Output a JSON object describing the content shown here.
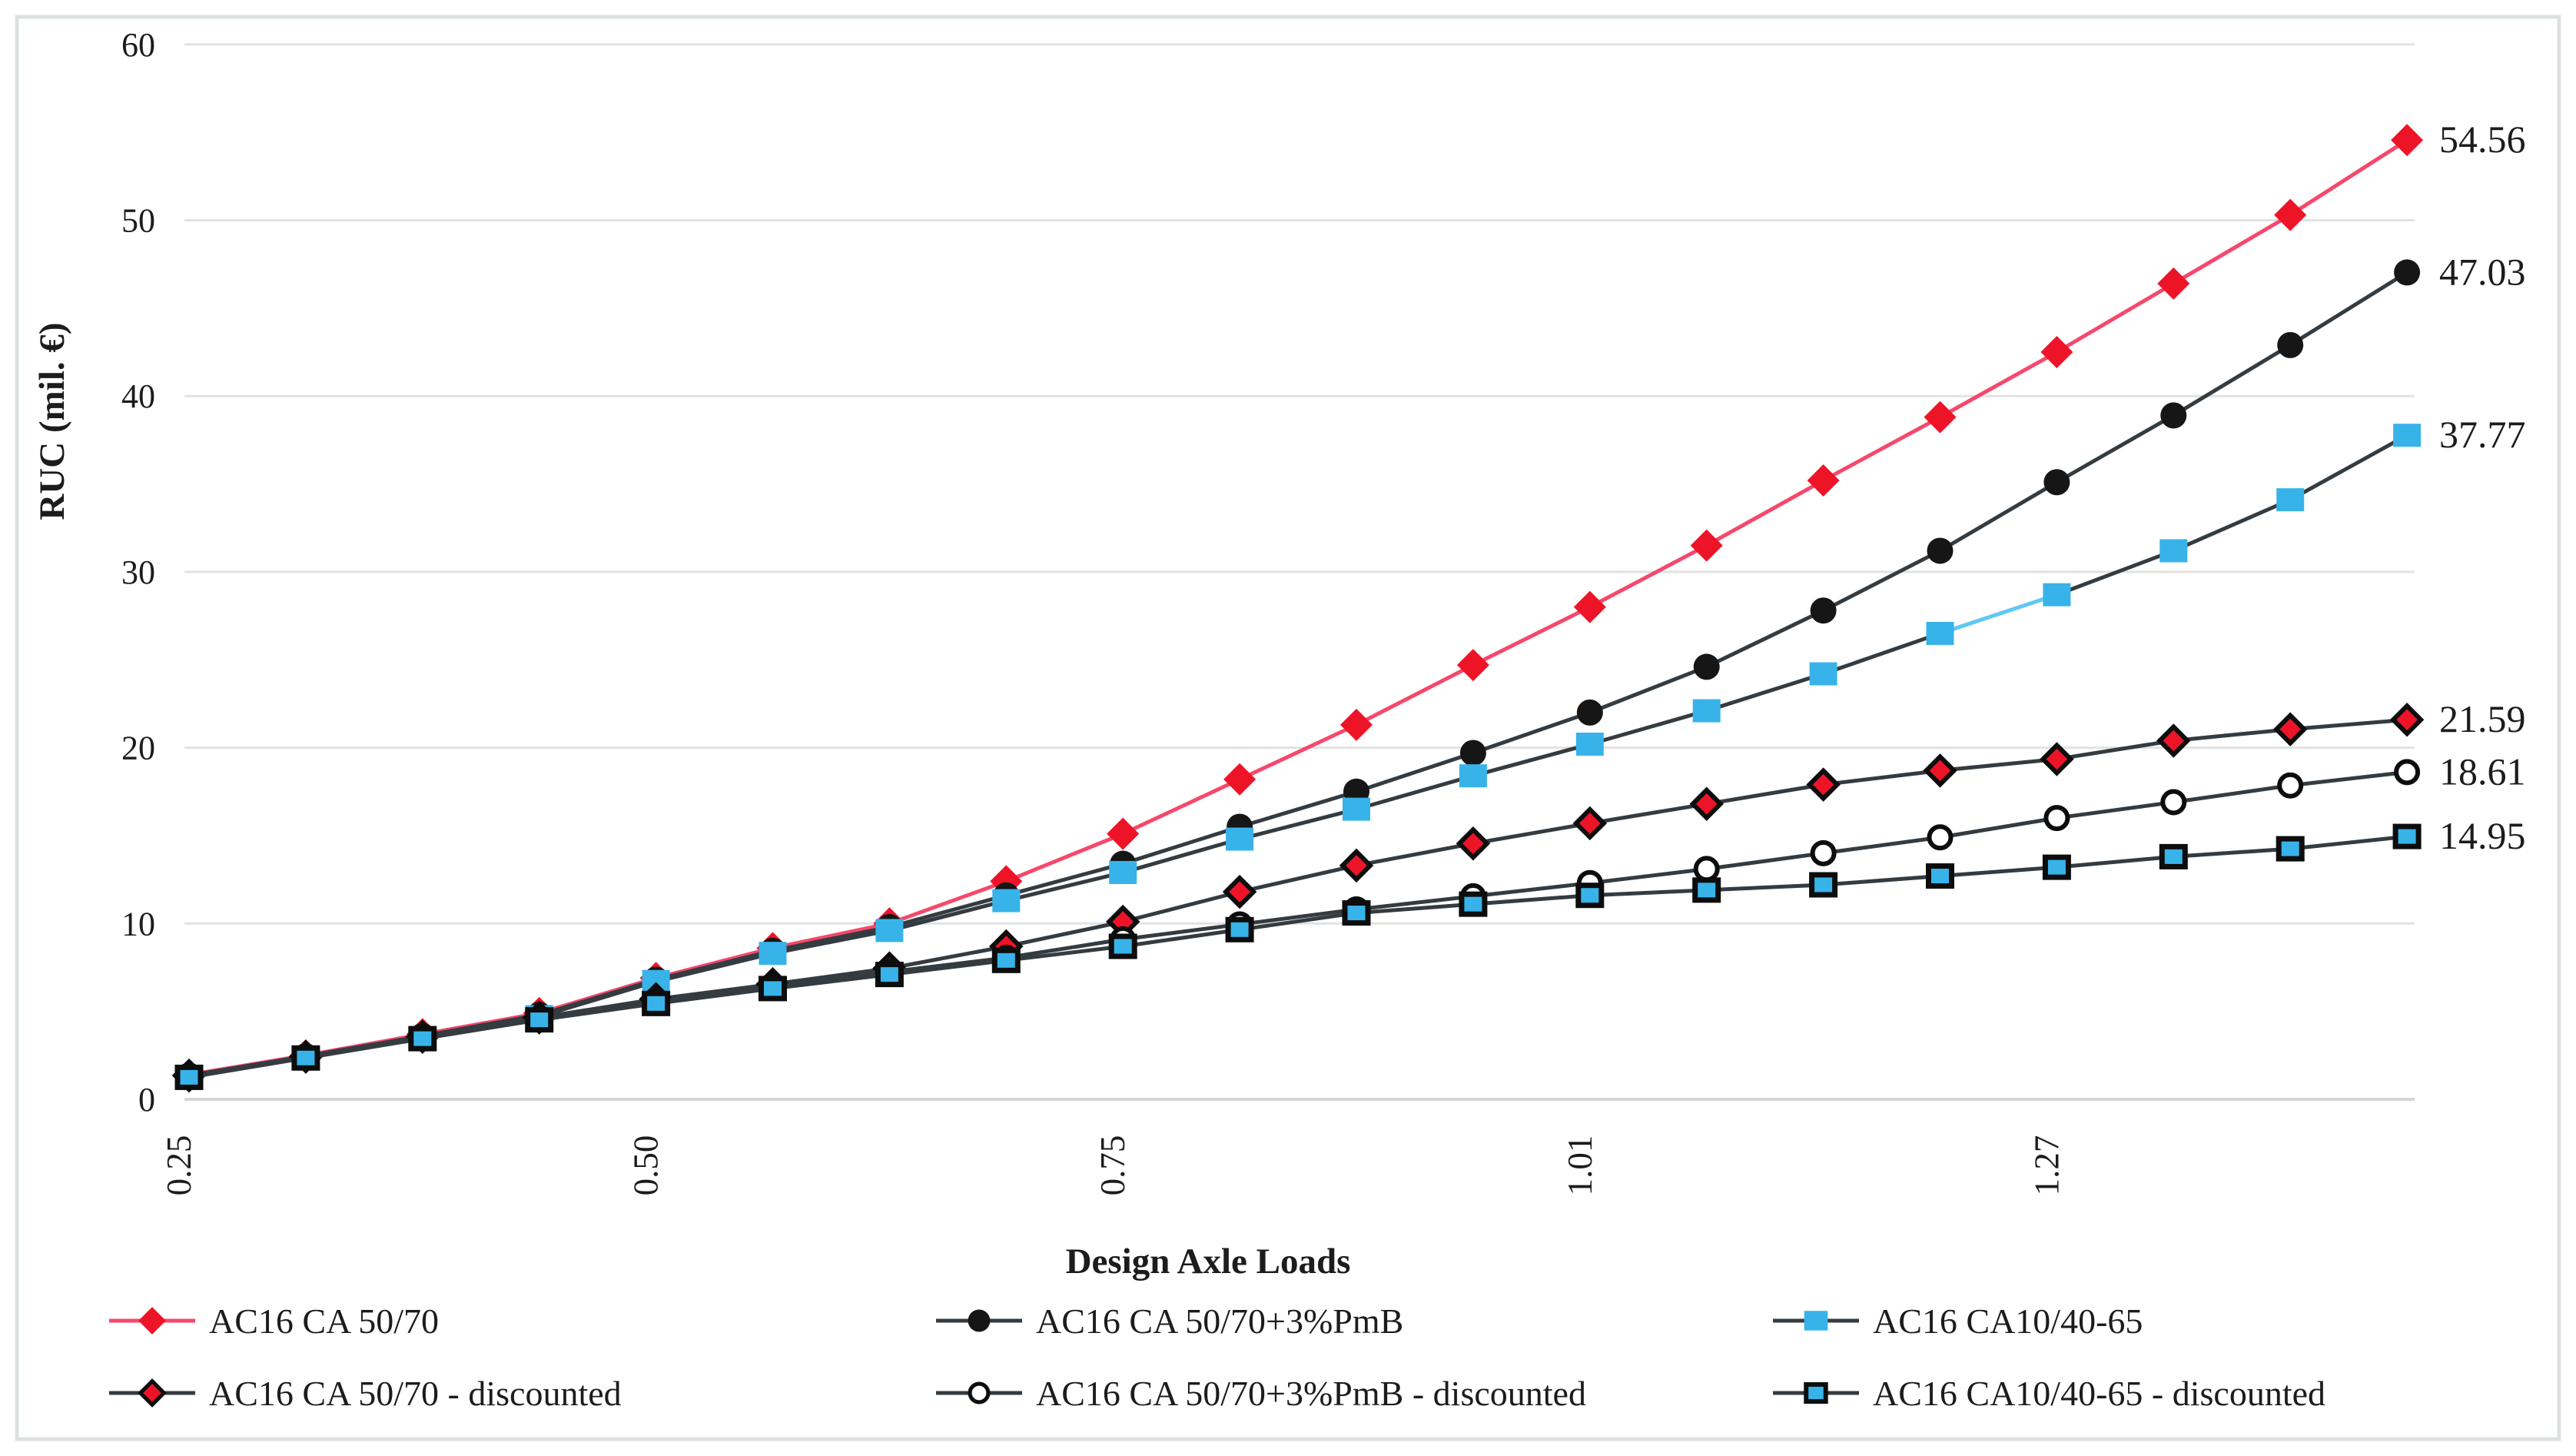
{
  "figure": {
    "x_axis_title": "Design Axle Loads",
    "y_axis_title": "RUC (mil. €)"
  },
  "colors": {
    "red_marker": "#ee1428",
    "red_line": "#f6486c",
    "dark_line": "#343c41",
    "black_marker": "#161616",
    "blue_marker": "#38b3e9",
    "cyan_line": "#5fc8f3",
    "grid": "#e1e3e1",
    "zero_line": "#d4d7d5",
    "frame": "#dce0e0",
    "text": "#1c1c1c",
    "marker_outline": "#0d0d0d",
    "white": "#ffffff"
  },
  "chart_data": {
    "type": "line",
    "xlabel": "Design Axle Loads",
    "ylabel": "RUC (mil. €)",
    "ylim": [
      0,
      60
    ],
    "y_ticks": [
      0,
      10,
      20,
      30,
      40,
      50,
      60
    ],
    "grid": "horizontal",
    "legend_position": "bottom",
    "categories": [
      "0.25",
      "",
      "",
      "",
      "0.50",
      "",
      "",
      "",
      "0.75",
      "",
      "",
      "",
      "1.01",
      "",
      "",
      "",
      "1.27",
      "",
      "",
      ""
    ],
    "series": [
      {
        "name": "AC16 CA 50/70",
        "marker": "diamond",
        "marker_color": "#ee1428",
        "line_color": "#f6486c",
        "values": [
          1.4,
          2.5,
          3.7,
          4.9,
          6.9,
          8.6,
          10.0,
          12.4,
          15.1,
          18.2,
          21.3,
          24.7,
          28.0,
          31.5,
          35.2,
          38.8,
          42.5,
          46.4,
          50.3,
          54.56
        ],
        "end_label": "54.56"
      },
      {
        "name": "AC16 CA 50/70+3%PmB",
        "marker": "circle",
        "marker_color": "#161616",
        "line_color": "#343c41",
        "values": [
          1.35,
          2.45,
          3.6,
          4.8,
          6.8,
          8.45,
          9.8,
          11.6,
          13.4,
          15.5,
          17.5,
          19.7,
          22.0,
          24.6,
          27.8,
          31.2,
          35.1,
          38.9,
          42.9,
          47.03
        ],
        "end_label": "47.03"
      },
      {
        "name": "AC16 CA10/40-65",
        "marker": "square",
        "marker_color": "#38b3e9",
        "line_color": "#343c41",
        "cyan_segments": [
          15
        ],
        "cyan_color": "#5fc8f3",
        "values": [
          1.3,
          2.4,
          3.5,
          4.7,
          6.7,
          8.3,
          9.6,
          11.3,
          12.9,
          14.8,
          16.5,
          18.4,
          20.2,
          22.1,
          24.2,
          26.5,
          28.7,
          31.2,
          34.1,
          37.77
        ],
        "end_label": "37.77"
      },
      {
        "name": "AC16 CA 50/70 - discounted",
        "marker": "diamond-outlined",
        "marker_color": "#ee1428",
        "outline_color": "#0d0d0d",
        "line_color": "#343c41",
        "values": [
          1.35,
          2.42,
          3.55,
          4.65,
          5.7,
          6.55,
          7.45,
          8.7,
          10.1,
          11.8,
          13.3,
          14.55,
          15.7,
          16.8,
          17.9,
          18.7,
          19.35,
          20.4,
          21.05,
          21.59
        ],
        "end_label": "21.59"
      },
      {
        "name": "AC16 CA 50/70+3%PmB  - discounted",
        "marker": "circle-open",
        "marker_color": "#ffffff",
        "outline_color": "#0d0d0d",
        "line_color": "#343c41",
        "values": [
          1.3,
          2.38,
          3.5,
          4.58,
          5.55,
          6.4,
          7.25,
          8.05,
          9.1,
          9.95,
          10.8,
          11.55,
          12.3,
          13.1,
          14.0,
          14.9,
          16.0,
          16.9,
          17.85,
          18.61
        ],
        "end_label": "18.61"
      },
      {
        "name": "AC16 CA10/40-65 - discounted",
        "marker": "square-outlined",
        "marker_color": "#38b3e9",
        "outline_color": "#0d0d0d",
        "line_color": "#343c41",
        "values": [
          1.25,
          2.35,
          3.45,
          4.52,
          5.45,
          6.3,
          7.1,
          7.9,
          8.7,
          9.65,
          10.6,
          11.1,
          11.6,
          11.9,
          12.2,
          12.7,
          13.2,
          13.8,
          14.25,
          14.95
        ],
        "end_label": "14.95"
      }
    ],
    "legend_rows": [
      [
        0,
        1,
        2
      ],
      [
        3,
        4,
        5
      ]
    ]
  }
}
